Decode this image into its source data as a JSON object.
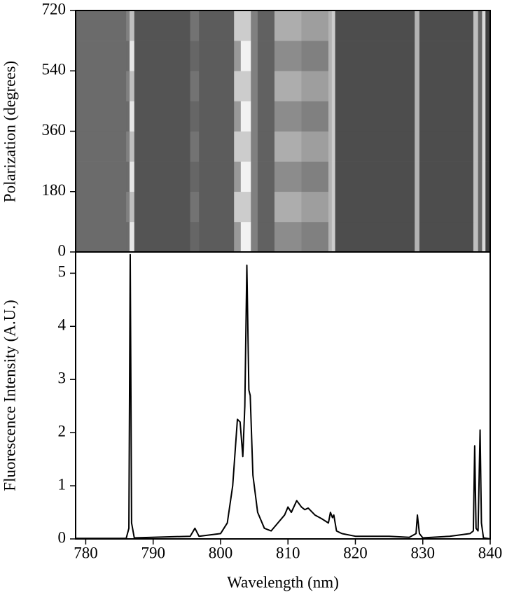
{
  "chart_data": [
    {
      "type": "heatmap",
      "ylabel": "Polarization (degrees)",
      "x_edges": [
        778.5,
        786,
        786.5,
        787.2,
        795.5,
        796.8,
        802,
        803,
        804.5,
        805.5,
        808,
        812,
        816,
        816.5,
        817,
        828.8,
        829.5,
        837.5,
        838.2,
        838.8,
        839.3,
        840
      ],
      "y_edges": [
        0,
        90,
        180,
        270,
        360,
        450,
        540,
        630,
        720
      ],
      "z": [
        [
          0.42,
          0.42,
          0.9,
          0.33,
          0.4,
          0.36,
          0.6,
          0.95,
          0.5,
          0.38,
          0.55,
          0.5,
          0.7,
          0.8,
          0.3,
          0.7,
          0.3,
          0.75,
          0.4,
          0.85,
          0.25
        ],
        [
          0.42,
          0.5,
          0.75,
          0.33,
          0.45,
          0.36,
          0.8,
          0.8,
          0.5,
          0.38,
          0.68,
          0.62,
          0.7,
          0.8,
          0.3,
          0.7,
          0.3,
          0.75,
          0.4,
          0.85,
          0.25
        ],
        [
          0.42,
          0.42,
          0.9,
          0.33,
          0.4,
          0.36,
          0.6,
          0.95,
          0.5,
          0.38,
          0.55,
          0.5,
          0.7,
          0.8,
          0.3,
          0.7,
          0.3,
          0.75,
          0.4,
          0.85,
          0.25
        ],
        [
          0.42,
          0.5,
          0.75,
          0.33,
          0.45,
          0.36,
          0.8,
          0.8,
          0.5,
          0.38,
          0.68,
          0.62,
          0.7,
          0.8,
          0.3,
          0.7,
          0.3,
          0.75,
          0.4,
          0.85,
          0.25
        ],
        [
          0.42,
          0.42,
          0.9,
          0.33,
          0.4,
          0.36,
          0.6,
          0.95,
          0.5,
          0.38,
          0.55,
          0.5,
          0.7,
          0.8,
          0.3,
          0.7,
          0.3,
          0.75,
          0.4,
          0.85,
          0.25
        ],
        [
          0.42,
          0.5,
          0.75,
          0.33,
          0.45,
          0.36,
          0.8,
          0.8,
          0.5,
          0.38,
          0.68,
          0.62,
          0.7,
          0.8,
          0.3,
          0.7,
          0.3,
          0.75,
          0.4,
          0.85,
          0.25
        ],
        [
          0.42,
          0.42,
          0.9,
          0.33,
          0.4,
          0.36,
          0.6,
          0.95,
          0.5,
          0.38,
          0.55,
          0.5,
          0.7,
          0.8,
          0.3,
          0.7,
          0.3,
          0.75,
          0.4,
          0.85,
          0.25
        ],
        [
          0.42,
          0.5,
          0.75,
          0.33,
          0.45,
          0.36,
          0.8,
          0.8,
          0.5,
          0.38,
          0.68,
          0.62,
          0.7,
          0.8,
          0.3,
          0.7,
          0.3,
          0.75,
          0.4,
          0.85,
          0.25
        ]
      ],
      "zlim": [
        0,
        1
      ],
      "xlim": [
        778.5,
        840
      ],
      "ylim": [
        0,
        720
      ],
      "yticks": [
        0,
        180,
        360,
        540,
        720
      ]
    },
    {
      "type": "line",
      "xlabel": "Wavelength (nm)",
      "ylabel": "Fluorescence Intensity (A.U.)",
      "color": "#000000",
      "x": [
        778.5,
        786,
        786.4,
        786.6,
        786.8,
        787.2,
        795.5,
        796.2,
        796.8,
        800,
        801,
        801.8,
        802.5,
        802.9,
        803.3,
        803.6,
        803.9,
        804.2,
        804.4,
        804.8,
        805.5,
        806.5,
        807.5,
        808.5,
        809.5,
        810,
        810.5,
        811.3,
        812,
        812.5,
        813,
        814,
        815,
        816,
        816.3,
        816.6,
        816.8,
        817.2,
        818,
        820,
        825,
        828,
        829,
        829.2,
        829.5,
        830,
        834,
        837,
        837.5,
        837.7,
        837.9,
        838.2,
        838.5,
        838.7,
        839,
        840
      ],
      "values": [
        0.01,
        0.01,
        0.2,
        5.35,
        0.3,
        0.02,
        0.05,
        0.2,
        0.05,
        0.1,
        0.3,
        1.0,
        2.25,
        2.2,
        1.55,
        2.5,
        5.15,
        2.8,
        2.7,
        1.2,
        0.5,
        0.2,
        0.15,
        0.3,
        0.45,
        0.6,
        0.5,
        0.72,
        0.6,
        0.55,
        0.58,
        0.45,
        0.38,
        0.3,
        0.5,
        0.4,
        0.45,
        0.15,
        0.1,
        0.05,
        0.05,
        0.03,
        0.1,
        0.45,
        0.1,
        0.02,
        0.05,
        0.1,
        0.15,
        1.75,
        0.2,
        0.15,
        2.05,
        0.3,
        0.02,
        0
      ],
      "xlim": [
        778.5,
        840
      ],
      "ylim": [
        0,
        5.4
      ],
      "xticks": [
        780,
        790,
        800,
        810,
        820,
        830,
        840
      ],
      "yticks": [
        0,
        1,
        2,
        3,
        4,
        5
      ]
    }
  ]
}
